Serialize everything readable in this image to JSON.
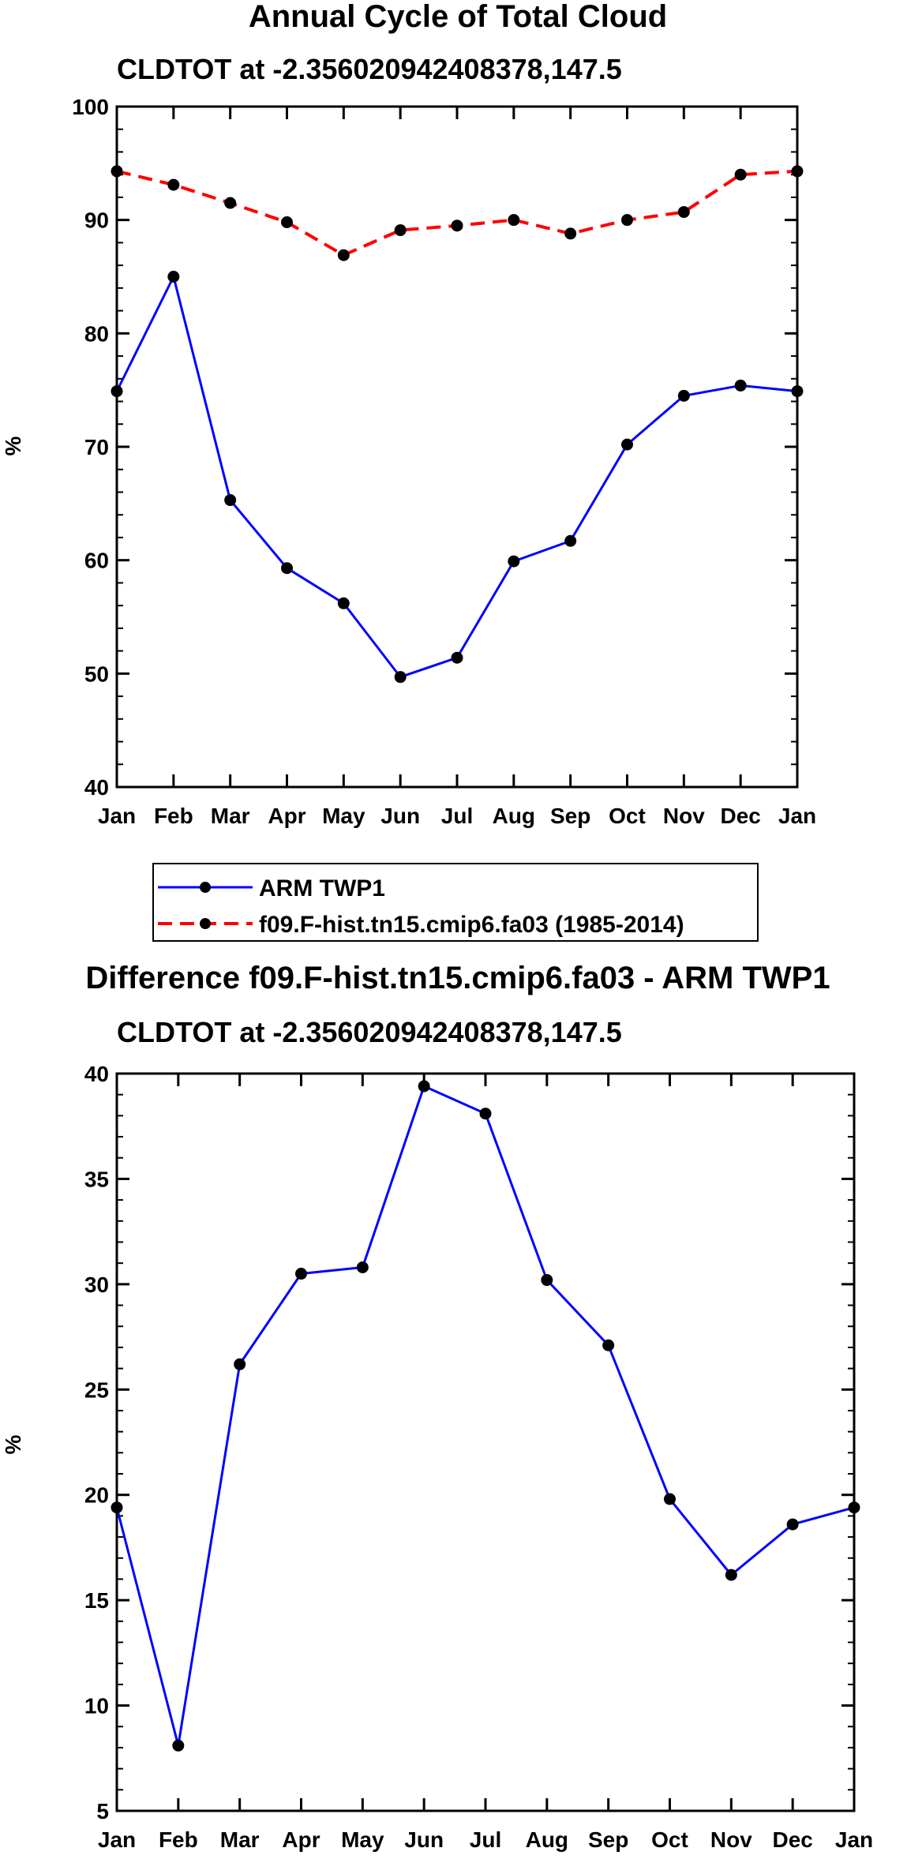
{
  "chart_data": [
    {
      "type": "line",
      "title": "Annual Cycle of Total Cloud",
      "subtitle": "CLDTOT at -2.356020942408378,147.5",
      "ylabel": "%",
      "xlabel": "",
      "ylim": [
        40,
        100
      ],
      "yticks": [
        "40",
        "50",
        "60",
        "70",
        "80",
        "90",
        "100"
      ],
      "categories": [
        "Jan",
        "Feb",
        "Mar",
        "Apr",
        "May",
        "Jun",
        "Jul",
        "Aug",
        "Sep",
        "Oct",
        "Nov",
        "Dec",
        "Jan"
      ],
      "series": [
        {
          "name": "ARM TWP1",
          "color": "#0000ff",
          "dash": "solid",
          "values": [
            74.9,
            85.0,
            65.3,
            59.3,
            56.2,
            49.7,
            51.4,
            59.9,
            61.7,
            70.2,
            74.5,
            75.4,
            74.9
          ]
        },
        {
          "name": "f09.F-hist.tn15.cmip6.fa03 (1985-2014)",
          "color": "#ff0000",
          "dash": "dashed",
          "values": [
            94.3,
            93.1,
            91.5,
            89.8,
            86.9,
            89.1,
            89.5,
            90.0,
            88.8,
            90.0,
            90.7,
            94.0,
            94.3
          ]
        }
      ],
      "legend": "below"
    },
    {
      "type": "line",
      "title": "Difference f09.F-hist.tn15.cmip6.fa03 - ARM TWP1",
      "subtitle": "CLDTOT at -2.356020942408378,147.5",
      "ylabel": "%",
      "xlabel": "",
      "ylim": [
        5,
        40
      ],
      "yticks": [
        "5",
        "10",
        "15",
        "20",
        "25",
        "30",
        "35",
        "40"
      ],
      "categories": [
        "Jan",
        "Feb",
        "Mar",
        "Apr",
        "May",
        "Jun",
        "Jul",
        "Aug",
        "Sep",
        "Oct",
        "Nov",
        "Dec",
        "Jan"
      ],
      "series": [
        {
          "name": "Difference",
          "color": "#0000ff",
          "dash": "solid",
          "values": [
            19.4,
            8.1,
            26.2,
            30.5,
            30.8,
            39.4,
            38.1,
            30.2,
            27.1,
            19.8,
            16.2,
            18.6,
            19.4
          ]
        }
      ]
    }
  ]
}
